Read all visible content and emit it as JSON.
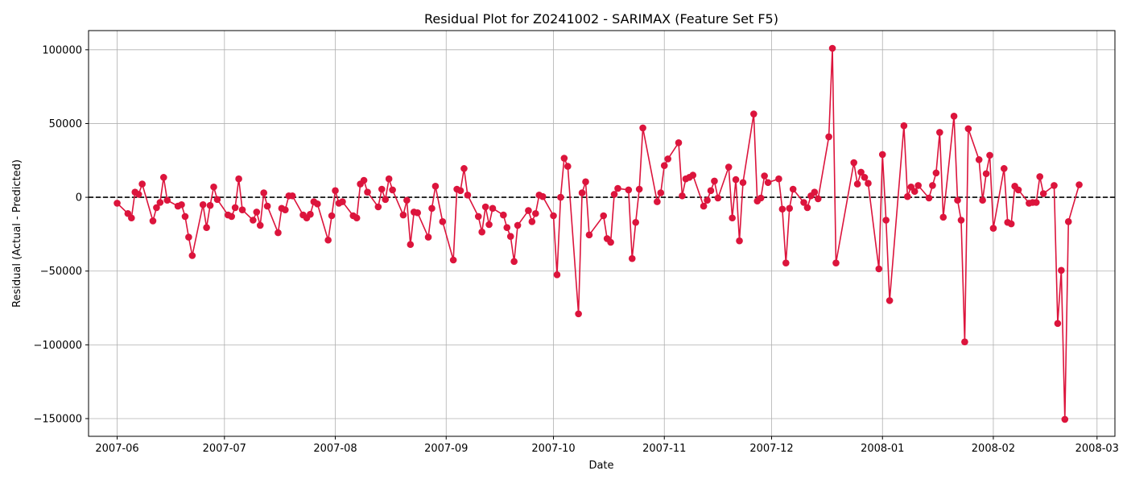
{
  "chart_data": {
    "type": "line",
    "title": "Residual Plot for Z0241002 - SARIMAX (Feature Set F5)",
    "xlabel": "Date",
    "ylabel": "Residual (Actual - Predicted)",
    "xlim": [
      "2007-05-24",
      "2008-03-06"
    ],
    "ylim": [
      -162000,
      113000
    ],
    "x_ticks": [
      "2007-06-01",
      "2007-07-01",
      "2007-08-01",
      "2007-09-01",
      "2007-10-01",
      "2007-11-01",
      "2007-12-01",
      "2008-01-01",
      "2008-02-01",
      "2008-03-01"
    ],
    "x_tick_labels": [
      "2007-06",
      "2007-07",
      "2007-08",
      "2007-09",
      "2007-10",
      "2007-11",
      "2007-12",
      "2008-01",
      "2008-02",
      "2008-03"
    ],
    "y_ticks": [
      -150000,
      -100000,
      -50000,
      0,
      50000,
      100000
    ],
    "y_tick_labels": [
      "−150000",
      "−100000",
      "−50000",
      "0",
      "50000",
      "100000"
    ],
    "grid": true,
    "reference_line": {
      "y": 0,
      "style": "dashed",
      "color": "#000000"
    },
    "series": [
      {
        "color": "#dc143c",
        "points": [
          [
            "2007-06-01",
            -4000
          ],
          [
            "2007-06-04",
            -11000
          ],
          [
            "2007-06-05",
            -14000
          ],
          [
            "2007-06-06",
            3500
          ],
          [
            "2007-06-07",
            2000
          ],
          [
            "2007-06-08",
            9000
          ],
          [
            "2007-06-11",
            -16000
          ],
          [
            "2007-06-12",
            -7000
          ],
          [
            "2007-06-13",
            -3500
          ],
          [
            "2007-06-14",
            13500
          ],
          [
            "2007-06-15",
            -2000
          ],
          [
            "2007-06-18",
            -6000
          ],
          [
            "2007-06-19",
            -5000
          ],
          [
            "2007-06-20",
            -13000
          ],
          [
            "2007-06-21",
            -27000
          ],
          [
            "2007-06-22",
            -39500
          ],
          [
            "2007-06-25",
            -5000
          ],
          [
            "2007-06-26",
            -20500
          ],
          [
            "2007-06-27",
            -5500
          ],
          [
            "2007-06-28",
            7000
          ],
          [
            "2007-06-29",
            -1500
          ],
          [
            "2007-07-02",
            -12000
          ],
          [
            "2007-07-03",
            -13000
          ],
          [
            "2007-07-04",
            -7000
          ],
          [
            "2007-07-05",
            12500
          ],
          [
            "2007-07-06",
            -8500
          ],
          [
            "2007-07-09",
            -15500
          ],
          [
            "2007-07-10",
            -10000
          ],
          [
            "2007-07-11",
            -19000
          ],
          [
            "2007-07-12",
            3000
          ],
          [
            "2007-07-13",
            -6000
          ],
          [
            "2007-07-16",
            -24000
          ],
          [
            "2007-07-17",
            -7500
          ],
          [
            "2007-07-18",
            -8500
          ],
          [
            "2007-07-19",
            1000
          ],
          [
            "2007-07-20",
            1000
          ],
          [
            "2007-07-23",
            -12000
          ],
          [
            "2007-07-24",
            -14000
          ],
          [
            "2007-07-25",
            -11500
          ],
          [
            "2007-07-26",
            -3000
          ],
          [
            "2007-07-27",
            -4500
          ],
          [
            "2007-07-30",
            -29000
          ],
          [
            "2007-07-31",
            -12500
          ],
          [
            "2007-08-01",
            4500
          ],
          [
            "2007-08-02",
            -4000
          ],
          [
            "2007-08-03",
            -3000
          ],
          [
            "2007-08-06",
            -12500
          ],
          [
            "2007-08-07",
            -14000
          ],
          [
            "2007-08-08",
            9000
          ],
          [
            "2007-08-09",
            11500
          ],
          [
            "2007-08-10",
            3500
          ],
          [
            "2007-08-13",
            -6500
          ],
          [
            "2007-08-14",
            5500
          ],
          [
            "2007-08-15",
            -1500
          ],
          [
            "2007-08-16",
            12500
          ],
          [
            "2007-08-17",
            5000
          ],
          [
            "2007-08-20",
            -12000
          ],
          [
            "2007-08-21",
            -2000
          ],
          [
            "2007-08-22",
            -32000
          ],
          [
            "2007-08-23",
            -10000
          ],
          [
            "2007-08-24",
            -10500
          ],
          [
            "2007-08-27",
            -27000
          ],
          [
            "2007-08-28",
            -7500
          ],
          [
            "2007-08-29",
            7500
          ],
          [
            "2007-08-31",
            -16500
          ],
          [
            "2007-09-03",
            -42500
          ],
          [
            "2007-09-04",
            5500
          ],
          [
            "2007-09-05",
            4500
          ],
          [
            "2007-09-06",
            19500
          ],
          [
            "2007-09-07",
            1500
          ],
          [
            "2007-09-10",
            -13000
          ],
          [
            "2007-09-11",
            -23500
          ],
          [
            "2007-09-12",
            -6500
          ],
          [
            "2007-09-13",
            -18500
          ],
          [
            "2007-09-14",
            -7500
          ],
          [
            "2007-09-17",
            -12000
          ],
          [
            "2007-09-18",
            -20500
          ],
          [
            "2007-09-19",
            -26500
          ],
          [
            "2007-09-20",
            -43500
          ],
          [
            "2007-09-21",
            -19000
          ],
          [
            "2007-09-24",
            -9000
          ],
          [
            "2007-09-25",
            -16500
          ],
          [
            "2007-09-26",
            -11000
          ],
          [
            "2007-09-27",
            1500
          ],
          [
            "2007-09-28",
            500
          ],
          [
            "2007-10-01",
            -12500
          ],
          [
            "2007-10-02",
            -52500
          ],
          [
            "2007-10-03",
            0
          ],
          [
            "2007-10-04",
            26500
          ],
          [
            "2007-10-05",
            21000
          ],
          [
            "2007-10-08",
            -79000
          ],
          [
            "2007-10-09",
            3000
          ],
          [
            "2007-10-10",
            10500
          ],
          [
            "2007-10-11",
            -25500
          ],
          [
            "2007-10-15",
            -12500
          ],
          [
            "2007-10-16",
            -28000
          ],
          [
            "2007-10-17",
            -30500
          ],
          [
            "2007-10-18",
            2000
          ],
          [
            "2007-10-19",
            6000
          ],
          [
            "2007-10-22",
            5000
          ],
          [
            "2007-10-23",
            -41500
          ],
          [
            "2007-10-24",
            -17000
          ],
          [
            "2007-10-25",
            5500
          ],
          [
            "2007-10-26",
            47000
          ],
          [
            "2007-10-30",
            -3000
          ],
          [
            "2007-10-31",
            3000
          ],
          [
            "2007-11-01",
            21500
          ],
          [
            "2007-11-02",
            26000
          ],
          [
            "2007-11-05",
            37000
          ],
          [
            "2007-11-06",
            1000
          ],
          [
            "2007-11-07",
            12500
          ],
          [
            "2007-11-08",
            13500
          ],
          [
            "2007-11-09",
            15000
          ],
          [
            "2007-11-12",
            -6000
          ],
          [
            "2007-11-13",
            -2000
          ],
          [
            "2007-11-14",
            4500
          ],
          [
            "2007-11-15",
            11000
          ],
          [
            "2007-11-16",
            -500
          ],
          [
            "2007-11-19",
            20500
          ],
          [
            "2007-11-20",
            -14000
          ],
          [
            "2007-11-21",
            12000
          ],
          [
            "2007-11-22",
            -29500
          ],
          [
            "2007-11-23",
            10000
          ],
          [
            "2007-11-26",
            56500
          ],
          [
            "2007-11-27",
            -2500
          ],
          [
            "2007-11-28",
            -500
          ],
          [
            "2007-11-29",
            14500
          ],
          [
            "2007-11-30",
            10000
          ],
          [
            "2007-12-03",
            12500
          ],
          [
            "2007-12-04",
            -8000
          ],
          [
            "2007-12-05",
            -44500
          ],
          [
            "2007-12-06",
            -7500
          ],
          [
            "2007-12-07",
            5500
          ],
          [
            "2007-12-10",
            -3500
          ],
          [
            "2007-12-11",
            -7000
          ],
          [
            "2007-12-12",
            1000
          ],
          [
            "2007-12-13",
            3500
          ],
          [
            "2007-12-14",
            -1000
          ],
          [
            "2007-12-17",
            41000
          ],
          [
            "2007-12-18",
            101000
          ],
          [
            "2007-12-19",
            -44500
          ],
          [
            "2007-12-24",
            23500
          ],
          [
            "2007-12-25",
            9000
          ],
          [
            "2007-12-26",
            17000
          ],
          [
            "2007-12-27",
            13500
          ],
          [
            "2007-12-28",
            9500
          ],
          [
            "2007-12-31",
            -48500
          ],
          [
            "2008-01-01",
            29000
          ],
          [
            "2008-01-02",
            -15500
          ],
          [
            "2008-01-03",
            -70000
          ],
          [
            "2008-01-07",
            48500
          ],
          [
            "2008-01-08",
            500
          ],
          [
            "2008-01-09",
            7000
          ],
          [
            "2008-01-10",
            4000
          ],
          [
            "2008-01-11",
            8000
          ],
          [
            "2008-01-14",
            -500
          ],
          [
            "2008-01-15",
            8000
          ],
          [
            "2008-01-16",
            16500
          ],
          [
            "2008-01-17",
            44000
          ],
          [
            "2008-01-18",
            -13500
          ],
          [
            "2008-01-21",
            55000
          ],
          [
            "2008-01-22",
            -2000
          ],
          [
            "2008-01-23",
            -15500
          ],
          [
            "2008-01-24",
            -98000
          ],
          [
            "2008-01-25",
            46500
          ],
          [
            "2008-01-28",
            25500
          ],
          [
            "2008-01-29",
            -2000
          ],
          [
            "2008-01-30",
            16000
          ],
          [
            "2008-01-31",
            28500
          ],
          [
            "2008-02-01",
            -21000
          ],
          [
            "2008-02-04",
            19500
          ],
          [
            "2008-02-05",
            -17000
          ],
          [
            "2008-02-06",
            -18000
          ],
          [
            "2008-02-07",
            7500
          ],
          [
            "2008-02-08",
            5000
          ],
          [
            "2008-02-11",
            -4000
          ],
          [
            "2008-02-12",
            -3500
          ],
          [
            "2008-02-13",
            -3500
          ],
          [
            "2008-02-14",
            14000
          ],
          [
            "2008-02-15",
            2500
          ],
          [
            "2008-02-18",
            8000
          ],
          [
            "2008-02-19",
            -85500
          ],
          [
            "2008-02-20",
            -49500
          ],
          [
            "2008-02-21",
            -150500
          ],
          [
            "2008-02-22",
            -16500
          ],
          [
            "2008-02-25",
            8500
          ]
        ]
      }
    ]
  }
}
